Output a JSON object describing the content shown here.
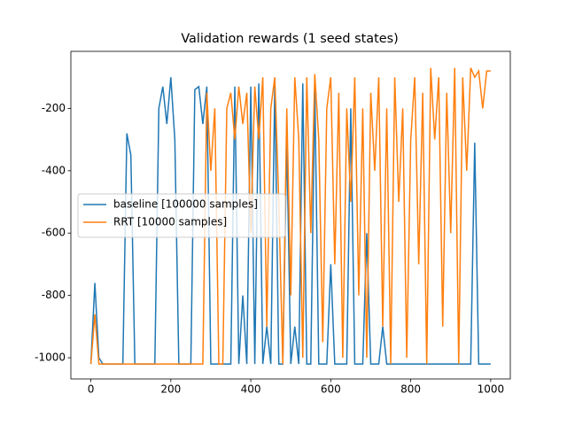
{
  "chart_data": {
    "type": "line",
    "title": "Validation rewards (1 seed states)",
    "x": [
      0,
      10,
      20,
      30,
      40,
      50,
      60,
      70,
      80,
      90,
      100,
      110,
      120,
      130,
      140,
      150,
      160,
      170,
      180,
      190,
      200,
      210,
      220,
      230,
      240,
      250,
      260,
      270,
      280,
      290,
      300,
      310,
      320,
      330,
      340,
      350,
      360,
      370,
      380,
      390,
      400,
      410,
      420,
      430,
      440,
      450,
      460,
      470,
      480,
      490,
      500,
      510,
      520,
      530,
      540,
      550,
      560,
      570,
      580,
      590,
      600,
      610,
      620,
      630,
      640,
      650,
      660,
      670,
      680,
      690,
      700,
      710,
      720,
      730,
      740,
      750,
      760,
      770,
      780,
      790,
      800,
      810,
      820,
      830,
      840,
      850,
      860,
      870,
      880,
      890,
      900,
      910,
      920,
      930,
      940,
      950,
      960,
      970,
      980,
      990,
      1000
    ],
    "series": [
      {
        "name": "baseline [100000 samples]",
        "color": "#1f77b4",
        "values": [
          -1020,
          -760,
          -1000,
          -1020,
          -1020,
          -1020,
          -1020,
          -1020,
          -1020,
          -280,
          -350,
          -1020,
          -1020,
          -1020,
          -1020,
          -1020,
          -1020,
          -200,
          -130,
          -250,
          -100,
          -300,
          -1020,
          -1020,
          -1020,
          -1020,
          -140,
          -130,
          -250,
          -130,
          -1020,
          -1020,
          -1020,
          -1020,
          -1020,
          -1020,
          -130,
          -1020,
          -800,
          -1020,
          -130,
          -1020,
          -120,
          -1020,
          -900,
          -1020,
          -120,
          -1020,
          -1020,
          -300,
          -1020,
          -900,
          -1020,
          -120,
          -1020,
          -1020,
          -140,
          -1020,
          -1020,
          -1020,
          -700,
          -1020,
          -1020,
          -1020,
          -1020,
          -200,
          -1020,
          -1020,
          -1020,
          -600,
          -1020,
          -1020,
          -1020,
          -900,
          -1020,
          -1020,
          -1020,
          -1020,
          -1020,
          -1020,
          -1020,
          -1020,
          -1020,
          -1020,
          -1020,
          -1020,
          -1020,
          -1020,
          -1020,
          -1020,
          -1020,
          -1020,
          -1020,
          -1020,
          -1020,
          -1020,
          -310,
          -1020,
          -1020,
          -1020,
          -1020
        ]
      },
      {
        "name": "RRT [10000 samples]",
        "color": "#ff7f0e",
        "values": [
          -1020,
          -860,
          -1020,
          -1020,
          -1020,
          -1020,
          -1020,
          -1020,
          -1020,
          -1020,
          -1020,
          -1020,
          -1020,
          -1020,
          -1020,
          -1020,
          -1020,
          -1020,
          -1020,
          -1020,
          -1020,
          -1020,
          -1020,
          -1020,
          -1020,
          -1020,
          -1020,
          -1020,
          -1020,
          -150,
          -400,
          -200,
          -1020,
          -1020,
          -200,
          -150,
          -300,
          -130,
          -250,
          -150,
          -600,
          -130,
          -300,
          -100,
          -900,
          -200,
          -100,
          -500,
          -1020,
          -200,
          -800,
          -100,
          -300,
          -1000,
          -100,
          -600,
          -90,
          -300,
          -950,
          -200,
          -100,
          -700,
          -150,
          -1000,
          -200,
          -500,
          -100,
          -800,
          -200,
          -1000,
          -150,
          -400,
          -100,
          -900,
          -200,
          -1020,
          -100,
          -500,
          -200,
          -1000,
          -300,
          -100,
          -700,
          -150,
          -1020,
          -70,
          -300,
          -100,
          -900,
          -150,
          -600,
          -70,
          -1020,
          -100,
          -400,
          -70,
          -100,
          -80,
          -200,
          -80,
          -80
        ]
      }
    ],
    "xlim": [
      -50,
      1049
    ],
    "ylim": [
      -1068,
      -17
    ],
    "xticks": [
      0,
      200,
      400,
      600,
      800,
      1000
    ],
    "yticks": [
      -1000,
      -800,
      -600,
      -400,
      -200
    ],
    "legend": "center left"
  }
}
